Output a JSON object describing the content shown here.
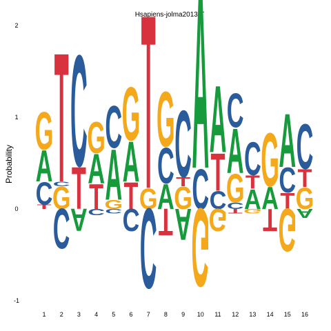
{
  "chart_data": {
    "type": "sequence-logo",
    "title": "Hsapiens-jolma2013-T",
    "ylabel": "Probability",
    "ylim": [
      -1,
      2
    ],
    "yticks": [
      "-1",
      "0",
      "1",
      "2"
    ],
    "colors": {
      "A": "#169a3c",
      "C": "#2a5b9b",
      "G": "#f4a91c",
      "T": "#d9323f"
    },
    "positions": [
      {
        "label": "1",
        "above": [
          [
            "T",
            0.05
          ],
          [
            "C",
            0.25
          ],
          [
            "A",
            0.35
          ],
          [
            "G",
            0.42
          ]
        ],
        "below": []
      },
      {
        "label": "2",
        "above": [
          [
            "G",
            0.25
          ],
          [
            "C",
            0.05
          ],
          [
            "T",
            1.45
          ]
        ],
        "below": [
          [
            "C",
            0.45
          ]
        ]
      },
      {
        "label": "3",
        "above": [
          [
            "T",
            0.47
          ],
          [
            "C",
            1.25
          ]
        ],
        "below": [
          [
            "A",
            0.25
          ]
        ]
      },
      {
        "label": "4",
        "above": [
          [
            "T",
            0.28
          ],
          [
            "A",
            0.33
          ],
          [
            "G",
            0.35
          ]
        ],
        "below": [
          [
            "C",
            0.07
          ]
        ]
      },
      {
        "label": "5",
        "above": [
          [
            "G",
            0.1
          ],
          [
            "A",
            0.57
          ],
          [
            "C",
            0.47
          ]
        ],
        "below": [
          [
            "C",
            0.05
          ]
        ]
      },
      {
        "label": "6",
        "above": [
          [
            "T",
            0.3
          ],
          [
            "A",
            0.45
          ],
          [
            "G",
            0.6
          ]
        ],
        "below": [
          [
            "C",
            0.25
          ]
        ]
      },
      {
        "label": "7",
        "above": [
          [
            "G",
            0.23
          ],
          [
            "T",
            1.95
          ]
        ],
        "below": [
          [
            "C",
            0.9
          ]
        ]
      },
      {
        "label": "8",
        "above": [
          [
            "A",
            0.28
          ],
          [
            "C",
            0.4
          ],
          [
            "G",
            0.62
          ]
        ],
        "below": [
          [
            "T",
            0.3
          ]
        ]
      },
      {
        "label": "9",
        "above": [
          [
            "G",
            0.25
          ],
          [
            "T",
            0.1
          ],
          [
            "C",
            0.75
          ]
        ],
        "below": [
          [
            "A",
            0.35
          ]
        ]
      },
      {
        "label": "10",
        "above": [
          [
            "C",
            0.45
          ],
          [
            "A",
            1.95
          ]
        ],
        "below": [
          [
            "G",
            0.88
          ]
        ]
      },
      {
        "label": "11",
        "above": [
          [
            "C",
            0.2
          ],
          [
            "T",
            0.42
          ],
          [
            "A",
            0.75
          ]
        ],
        "below": [
          [
            "G",
            0.25
          ]
        ]
      },
      {
        "label": "12",
        "above": [
          [
            "C",
            0.07
          ],
          [
            "G",
            0.32
          ],
          [
            "A",
            0.5
          ],
          [
            "C",
            0.38
          ]
        ],
        "below": [
          [
            "T",
            0.05
          ]
        ]
      },
      {
        "label": "13",
        "above": [
          [
            "A",
            0.22
          ],
          [
            "T",
            0.15
          ],
          [
            "C",
            0.37
          ]
        ],
        "below": [
          [
            "G",
            0.05
          ]
        ]
      },
      {
        "label": "14",
        "above": [
          [
            "A",
            0.25
          ],
          [
            "G",
            0.6
          ]
        ],
        "below": [
          [
            "T",
            0.25
          ]
        ]
      },
      {
        "label": "15",
        "above": [
          [
            "T",
            0.18
          ],
          [
            "C",
            0.28
          ],
          [
            "A",
            0.6
          ]
        ],
        "below": [
          [
            "G",
            0.48
          ]
        ]
      },
      {
        "label": "16",
        "above": [
          [
            "G",
            0.24
          ],
          [
            "T",
            0.2
          ],
          [
            "C",
            0.5
          ]
        ],
        "below": [
          [
            "A",
            0.1
          ]
        ]
      }
    ]
  }
}
